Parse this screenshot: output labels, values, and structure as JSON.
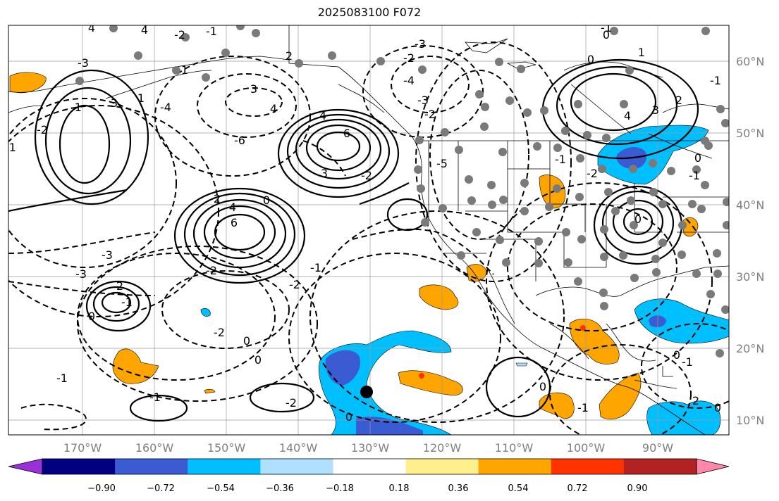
{
  "title": "2025083100 F072",
  "latitude_labels": [
    "60°N",
    "50°N",
    "40°N",
    "30°N",
    "20°N",
    "10°N"
  ],
  "longitude_labels": [
    "170°W",
    "160°W",
    "150°W",
    "140°W",
    "130°W",
    "120°W",
    "110°W",
    "100°W",
    "90°W"
  ],
  "colorbar": {
    "ticks": [
      "−0.90",
      "−0.72",
      "−0.54",
      "−0.36",
      "−0.18",
      "0.18",
      "0.36",
      "0.54",
      "0.72",
      "0.90"
    ],
    "colors": [
      "#9b30d9",
      "#000080",
      "#3a5bd1",
      "#00bfff",
      "#b0e0ff",
      "#ffffff",
      "#fff08c",
      "#ffa500",
      "#ff3300",
      "#b22222",
      "#ff88aa"
    ]
  },
  "contour_labels": [
    "4",
    "4",
    "-2",
    "-1",
    "2",
    "-1",
    "-2",
    "-3",
    "1",
    "-1",
    "3",
    "-4",
    "3",
    "4",
    "-6",
    "1",
    "-2",
    "-3",
    "4",
    "6",
    "-2",
    "-4",
    "-5",
    "-3",
    "-1",
    "0",
    "4",
    "3",
    "2",
    "1",
    "-1",
    "0",
    "-1",
    "4",
    "6",
    "3",
    "-2",
    "2",
    "0",
    "-2",
    "-1",
    "-2",
    "-3",
    "0",
    "-3",
    "2",
    "-1",
    "-2",
    "0",
    "-1",
    "-2",
    "0",
    "0",
    "-1",
    "0",
    "-1",
    "-1",
    "-2",
    "0",
    "0",
    "0",
    "2",
    "-1",
    "0"
  ]
}
